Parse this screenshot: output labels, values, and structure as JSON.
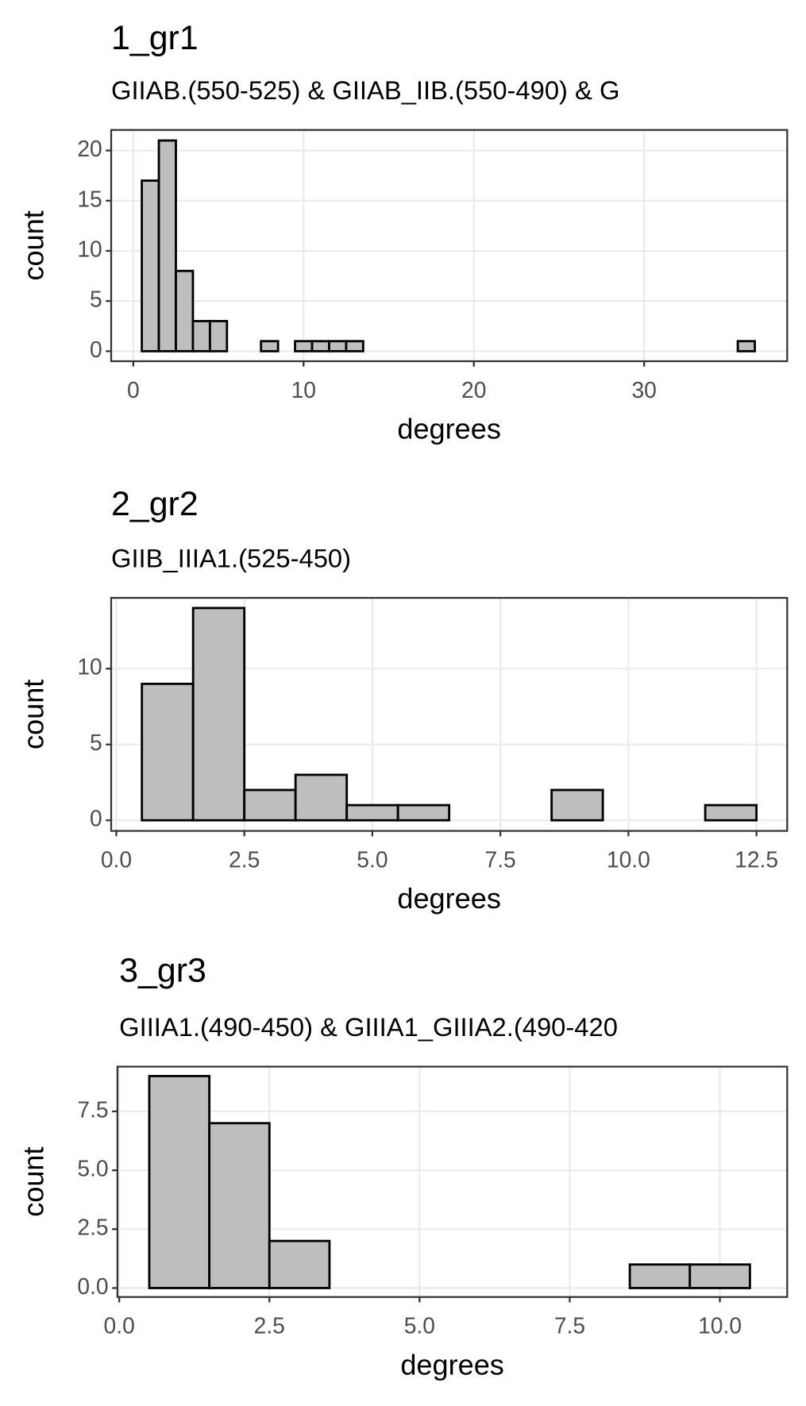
{
  "chart_data": [
    {
      "type": "histogram",
      "title": "1_gr1",
      "subtitle": "GIIAB.(550-525) & GIIAB_IIB.(550-490) & G",
      "x_label": "degrees",
      "y_label": "count",
      "color": "#bebebe",
      "edgecolor": "#000000",
      "grid": true,
      "bins": [
        0.5,
        1.5,
        2.5,
        3.5,
        4.5,
        5.5,
        6.5,
        7.5,
        8.5,
        9.5,
        10.5,
        11.5,
        12.5,
        13.5,
        14.5,
        15.5,
        16.5,
        17.5,
        18.5,
        19.5,
        20.5,
        21.5,
        22.5,
        23.5,
        24.5,
        25.5,
        26.5,
        27.5,
        28.5,
        29.5,
        30.5,
        31.5,
        32.5,
        33.5,
        34.5,
        35.5,
        36.5
      ],
      "values": [
        17,
        21,
        8,
        3,
        3,
        0,
        0,
        1,
        0,
        1,
        1,
        1,
        1,
        0,
        0,
        0,
        0,
        0,
        0,
        0,
        0,
        0,
        0,
        0,
        0,
        0,
        0,
        0,
        0,
        0,
        0,
        0,
        0,
        0,
        0,
        1
      ],
      "xlim": [
        -1.3,
        38.4
      ],
      "xticks": [
        0,
        10,
        20,
        30
      ],
      "ylim": [
        -1.0,
        22.05
      ],
      "yticks": [
        0,
        5,
        10,
        15,
        20
      ]
    },
    {
      "type": "histogram",
      "title": "2_gr2",
      "subtitle": "GIIB_IIIA1.(525-450)",
      "x_label": "degrees",
      "y_label": "count",
      "color": "#bebebe",
      "edgecolor": "#000000",
      "grid": true,
      "bins": [
        0.5,
        1.5,
        2.5,
        3.5,
        4.5,
        5.5,
        6.5,
        7.5,
        8.5,
        9.5,
        10.5,
        11.5,
        12.5
      ],
      "values": [
        9,
        14,
        2,
        3,
        1,
        1,
        0,
        0,
        2,
        0,
        0,
        1
      ],
      "xlim": [
        -0.1,
        13.1
      ],
      "xticks": [
        {
          "value": 0,
          "label": "0.0"
        },
        2.5,
        {
          "value": 5,
          "label": "5.0"
        },
        7.5,
        {
          "value": 10,
          "label": "10.0"
        },
        12.5
      ],
      "ylim": [
        -0.7,
        14.67
      ],
      "yticks": [
        0,
        5,
        10
      ]
    },
    {
      "type": "histogram",
      "title": "3_gr3",
      "subtitle": "GIIIA1.(490-450) & GIIIA1_GIIIA2.(490-420",
      "x_label": "degrees",
      "y_label": "count",
      "color": "#bebebe",
      "edgecolor": "#000000",
      "grid": true,
      "bins": [
        0.5,
        1.5,
        2.5,
        3.5,
        4.5,
        5.5,
        6.5,
        7.5,
        8.5,
        9.5,
        10.5
      ],
      "values": [
        9,
        7,
        2,
        0,
        0,
        0,
        0,
        0,
        1,
        1
      ],
      "xlim": [
        -0.03,
        11.12
      ],
      "xticks": [
        {
          "value": 0,
          "label": "0.0"
        },
        2.5,
        {
          "value": 5,
          "label": "5.0"
        },
        7.5,
        {
          "value": 10,
          "label": "10.0"
        }
      ],
      "ylim": [
        -0.38,
        9.4
      ],
      "yticks": [
        {
          "value": 0,
          "label": "0.0"
        },
        2.5,
        {
          "value": 5,
          "label": "5.0"
        },
        7.5
      ]
    }
  ]
}
